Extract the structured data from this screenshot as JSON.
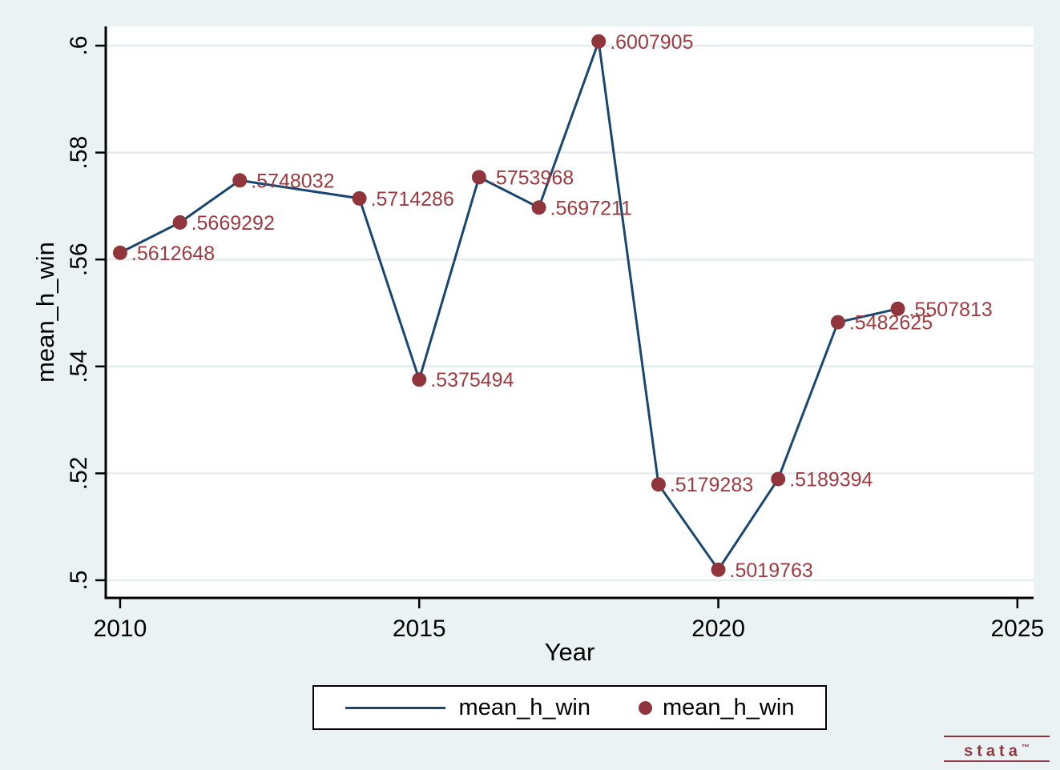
{
  "chart_data": {
    "type": "line",
    "title": "",
    "xlabel": "Year",
    "ylabel": "mean_h_win",
    "series_name": "mean_h_win",
    "x": [
      2010,
      2011,
      2012,
      2014,
      2015,
      2016,
      2017,
      2018,
      2019,
      2020,
      2021,
      2022,
      2023
    ],
    "values": [
      0.5612648,
      0.5669292,
      0.5748032,
      0.5714286,
      0.5375494,
      0.5753968,
      0.5697211,
      0.6007905,
      0.5179283,
      0.5019763,
      0.5189394,
      0.5482625,
      0.5507813
    ],
    "point_labels": [
      ".5612648",
      ".5669292",
      ".5748032",
      ".5714286",
      ".5375494",
      ".5753968",
      ".5697211",
      ".6007905",
      ".5179283",
      ".5019763",
      ".5189394",
      ".5482625",
      ".5507813"
    ],
    "xticks": {
      "values": [
        2010,
        2015,
        2020,
        2025
      ],
      "labels": [
        "2010",
        "2015",
        "2020",
        "2025"
      ]
    },
    "yticks": {
      "values": [
        0.5,
        0.52,
        0.54,
        0.56,
        0.58,
        0.6
      ],
      "labels": [
        ".5",
        ".52",
        ".54",
        ".56",
        ".58",
        ".6"
      ]
    },
    "x_domain": [
      2009.76,
      2025.27
    ],
    "y_domain": [
      0.4967,
      0.6036
    ],
    "grid": true,
    "legend": {
      "position": "bottom",
      "entries": [
        {
          "type": "line",
          "label": "mean_h_win"
        },
        {
          "type": "marker",
          "label": "mean_h_win"
        }
      ]
    },
    "colors": {
      "line": "#1a476f",
      "marker": "#90353b",
      "label_text": "#9d3b41",
      "background": "#eaf2f3",
      "plot_background": "#ffffff",
      "gridline": "#e3edef",
      "axis": "#000000"
    }
  },
  "branding": {
    "logo_text": "stata",
    "logo_tm": "™",
    "logo_color": "#8f3741"
  }
}
